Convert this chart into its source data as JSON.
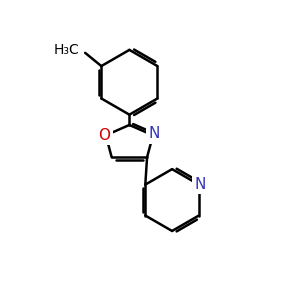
{
  "background_color": "#ffffff",
  "bond_color": "#000000",
  "bond_width": 1.8,
  "O_color": "#cc0000",
  "N_color": "#3333bb",
  "figsize": [
    3.0,
    3.0
  ],
  "dpi": 100,
  "xlim": [
    0,
    10
  ],
  "ylim": [
    0,
    10
  ]
}
